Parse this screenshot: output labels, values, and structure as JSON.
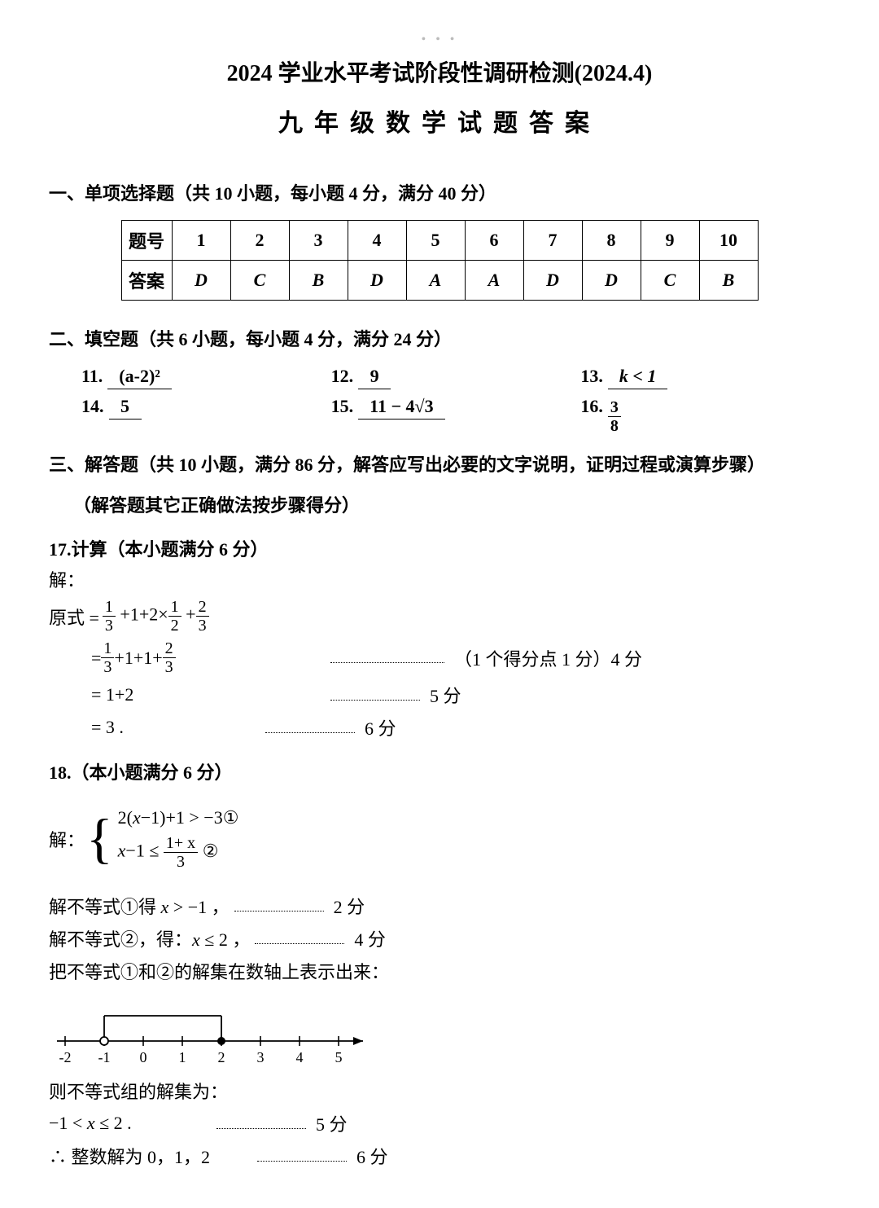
{
  "dots": "• • •",
  "title1": "2024 学业水平考试阶段性调研检测(2024.4)",
  "title2": "九年级数学试题答案",
  "sections": {
    "s1": "一、单项选择题（共 10 小题，每小题 4 分，满分 40 分）",
    "s2": "二、填空题（共 6 小题，每小题 4 分，满分 24 分）",
    "s3": "三、解答题（共 10 小题，满分 86 分，解答应写出必要的文字说明，证明过程或演算步骤）",
    "s3note": "（解答题其它正确做法按步骤得分）"
  },
  "table": {
    "row_label1": "题号",
    "row_label2": "答案",
    "nums": [
      "1",
      "2",
      "3",
      "4",
      "5",
      "6",
      "7",
      "8",
      "9",
      "10"
    ],
    "ans": [
      "D",
      "C",
      "B",
      "D",
      "A",
      "A",
      "D",
      "D",
      "C",
      "B"
    ]
  },
  "fill": {
    "n11": "11.",
    "a11": "(a-2)²",
    "n12": "12.",
    "a12": "9",
    "n13": "13.",
    "a13": "k < 1",
    "n14": "14.",
    "a14": "5",
    "n15": "15.",
    "a15": "11 − 4√3",
    "n16": "16.",
    "a16_num": "3",
    "a16_den": "8"
  },
  "q17": {
    "head": "17.计算（本小题满分 6 分）",
    "jie": "解：",
    "prefix": "原式 =",
    "note1": "（1 个得分点 1 分）4 分",
    "s5": "5 分",
    "s6": "6 分",
    "line3": "= 1+2",
    "line4": "= 3 ."
  },
  "q18": {
    "head": "18.（本小题满分 6 分）",
    "jie": "解：",
    "sys1_a": "2(",
    "sys1_b": "x",
    "sys1_c": "−1)+1 > −3",
    "sys2_a": "x",
    "sys2_b": "−1 ≤ ",
    "sys2_frac_num": "1+ x",
    "sys2_frac_den": "3",
    "c1": "①",
    "c2": "②",
    "step1a": "解不等式①得 ",
    "step1b": "x",
    "step1c": " > −1 ，",
    "step1score": "2 分",
    "step2a": "解不等式②，得：",
    "step2b": "x",
    "step2c": " ≤ 2 ，",
    "step2score": "4 分",
    "step3": "把不等式①和②的解集在数轴上表示出来：",
    "step4": "则不等式组的解集为：",
    "result_a": "−1 < ",
    "result_b": "x",
    "result_c": " ≤ 2 .",
    "result_score": "5 分",
    "final": "∴ 整数解为 0，1，2",
    "final_score": "6 分"
  },
  "numberline": {
    "ticks": [
      "-2",
      "-1",
      "0",
      "1",
      "2",
      "3",
      "4",
      "5"
    ],
    "open_at": -1,
    "closed_at": 2,
    "stroke": "#000000"
  }
}
